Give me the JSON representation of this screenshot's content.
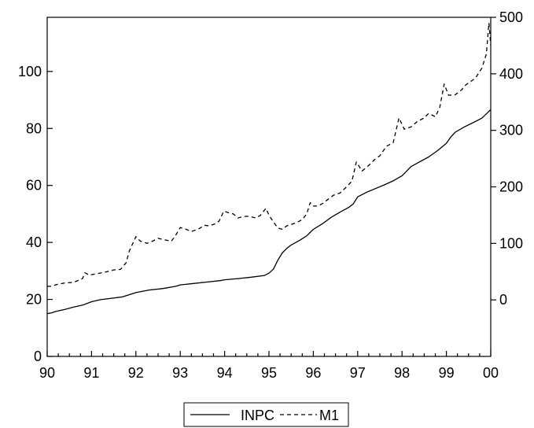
{
  "chart_data": {
    "type": "line",
    "title": "",
    "xlabel": "",
    "ylabel_left": "",
    "ylabel_right": "",
    "x_ticks": [
      "90",
      "91",
      "92",
      "93",
      "94",
      "95",
      "96",
      "97",
      "98",
      "99",
      "00"
    ],
    "x_range": [
      1990,
      2000
    ],
    "y_left": {
      "range": [
        0,
        119
      ],
      "ticks": [
        0,
        20,
        40,
        60,
        80,
        100
      ]
    },
    "y_right": {
      "range": [
        -100,
        500
      ],
      "ticks": [
        0,
        100,
        200,
        300,
        400,
        500
      ]
    },
    "grid": false,
    "legend_position": "bottom-center",
    "series": [
      {
        "name": "INPC",
        "axis": "left",
        "style": "solid",
        "color": "#000000",
        "points": [
          [
            1990.0,
            15.0
          ],
          [
            1990.1,
            15.3
          ],
          [
            1990.2,
            15.8
          ],
          [
            1990.4,
            16.5
          ],
          [
            1990.6,
            17.3
          ],
          [
            1990.8,
            18.0
          ],
          [
            1991.0,
            19.2
          ],
          [
            1991.2,
            19.9
          ],
          [
            1991.4,
            20.3
          ],
          [
            1991.7,
            20.9
          ],
          [
            1992.0,
            22.4
          ],
          [
            1992.3,
            23.3
          ],
          [
            1992.6,
            23.8
          ],
          [
            1992.9,
            24.6
          ],
          [
            1993.0,
            25.1
          ],
          [
            1993.3,
            25.6
          ],
          [
            1993.6,
            26.1
          ],
          [
            1993.9,
            26.6
          ],
          [
            1994.0,
            26.9
          ],
          [
            1994.3,
            27.3
          ],
          [
            1994.6,
            27.8
          ],
          [
            1994.9,
            28.4
          ],
          [
            1995.0,
            29.2
          ],
          [
            1995.1,
            30.6
          ],
          [
            1995.2,
            33.8
          ],
          [
            1995.3,
            36.3
          ],
          [
            1995.4,
            37.9
          ],
          [
            1995.5,
            39.1
          ],
          [
            1995.7,
            40.8
          ],
          [
            1995.85,
            42.3
          ],
          [
            1996.0,
            44.6
          ],
          [
            1996.2,
            46.5
          ],
          [
            1996.4,
            48.8
          ],
          [
            1996.6,
            50.6
          ],
          [
            1996.8,
            52.3
          ],
          [
            1996.9,
            53.5
          ],
          [
            1997.0,
            56.0
          ],
          [
            1997.2,
            57.6
          ],
          [
            1997.4,
            58.9
          ],
          [
            1997.6,
            60.2
          ],
          [
            1997.8,
            61.6
          ],
          [
            1998.0,
            63.4
          ],
          [
            1998.2,
            66.6
          ],
          [
            1998.4,
            68.3
          ],
          [
            1998.6,
            70.0
          ],
          [
            1998.8,
            72.2
          ],
          [
            1999.0,
            74.8
          ],
          [
            1999.1,
            77.0
          ],
          [
            1999.2,
            78.7
          ],
          [
            1999.4,
            80.5
          ],
          [
            1999.6,
            82.0
          ],
          [
            1999.8,
            83.6
          ],
          [
            2000.0,
            86.6
          ]
        ]
      },
      {
        "name": "M1",
        "axis": "right",
        "style": "dashed",
        "color": "#000000",
        "points": [
          [
            1990.0,
            24
          ],
          [
            1990.1,
            24
          ],
          [
            1990.2,
            27
          ],
          [
            1990.4,
            30
          ],
          [
            1990.6,
            31
          ],
          [
            1990.8,
            38
          ],
          [
            1990.85,
            48
          ],
          [
            1990.95,
            44
          ],
          [
            1991.1,
            46
          ],
          [
            1991.3,
            49
          ],
          [
            1991.5,
            53
          ],
          [
            1991.65,
            54
          ],
          [
            1991.7,
            58
          ],
          [
            1991.78,
            66
          ],
          [
            1991.85,
            86
          ],
          [
            1992.0,
            112
          ],
          [
            1992.1,
            104
          ],
          [
            1992.25,
            100
          ],
          [
            1992.35,
            103
          ],
          [
            1992.5,
            109
          ],
          [
            1992.6,
            107
          ],
          [
            1992.8,
            104
          ],
          [
            1992.88,
            112
          ],
          [
            1993.0,
            128
          ],
          [
            1993.1,
            126
          ],
          [
            1993.25,
            121
          ],
          [
            1993.4,
            125
          ],
          [
            1993.55,
            132
          ],
          [
            1993.65,
            131
          ],
          [
            1993.8,
            135
          ],
          [
            1993.88,
            140
          ],
          [
            1993.98,
            157
          ],
          [
            1994.1,
            154
          ],
          [
            1994.2,
            152
          ],
          [
            1994.3,
            145
          ],
          [
            1994.4,
            147
          ],
          [
            1994.5,
            148
          ],
          [
            1994.6,
            147
          ],
          [
            1994.7,
            145
          ],
          [
            1994.8,
            149
          ],
          [
            1994.93,
            162
          ],
          [
            1995.0,
            150
          ],
          [
            1995.1,
            138
          ],
          [
            1995.2,
            127
          ],
          [
            1995.3,
            125
          ],
          [
            1995.4,
            131
          ],
          [
            1995.6,
            136
          ],
          [
            1995.75,
            142
          ],
          [
            1995.85,
            152
          ],
          [
            1995.93,
            172
          ],
          [
            1996.0,
            166
          ],
          [
            1996.1,
            166
          ],
          [
            1996.2,
            170
          ],
          [
            1996.3,
            176
          ],
          [
            1996.45,
            185
          ],
          [
            1996.6,
            189
          ],
          [
            1996.75,
            200
          ],
          [
            1996.87,
            210
          ],
          [
            1996.97,
            244
          ],
          [
            1997.1,
            228
          ],
          [
            1997.25,
            238
          ],
          [
            1997.38,
            248
          ],
          [
            1997.5,
            255
          ],
          [
            1997.65,
            272
          ],
          [
            1997.8,
            278
          ],
          [
            1997.93,
            322
          ],
          [
            1998.05,
            302
          ],
          [
            1998.2,
            306
          ],
          [
            1998.35,
            316
          ],
          [
            1998.5,
            322
          ],
          [
            1998.6,
            330
          ],
          [
            1998.75,
            324
          ],
          [
            1998.85,
            340
          ],
          [
            1998.95,
            382
          ],
          [
            1999.05,
            362
          ],
          [
            1999.2,
            363
          ],
          [
            1999.35,
            372
          ],
          [
            1999.4,
            378
          ],
          [
            1999.5,
            384
          ],
          [
            1999.65,
            392
          ],
          [
            1999.8,
            410
          ],
          [
            1999.9,
            435
          ],
          [
            1999.96,
            490
          ],
          [
            2000.0,
            450
          ]
        ]
      }
    ]
  }
}
